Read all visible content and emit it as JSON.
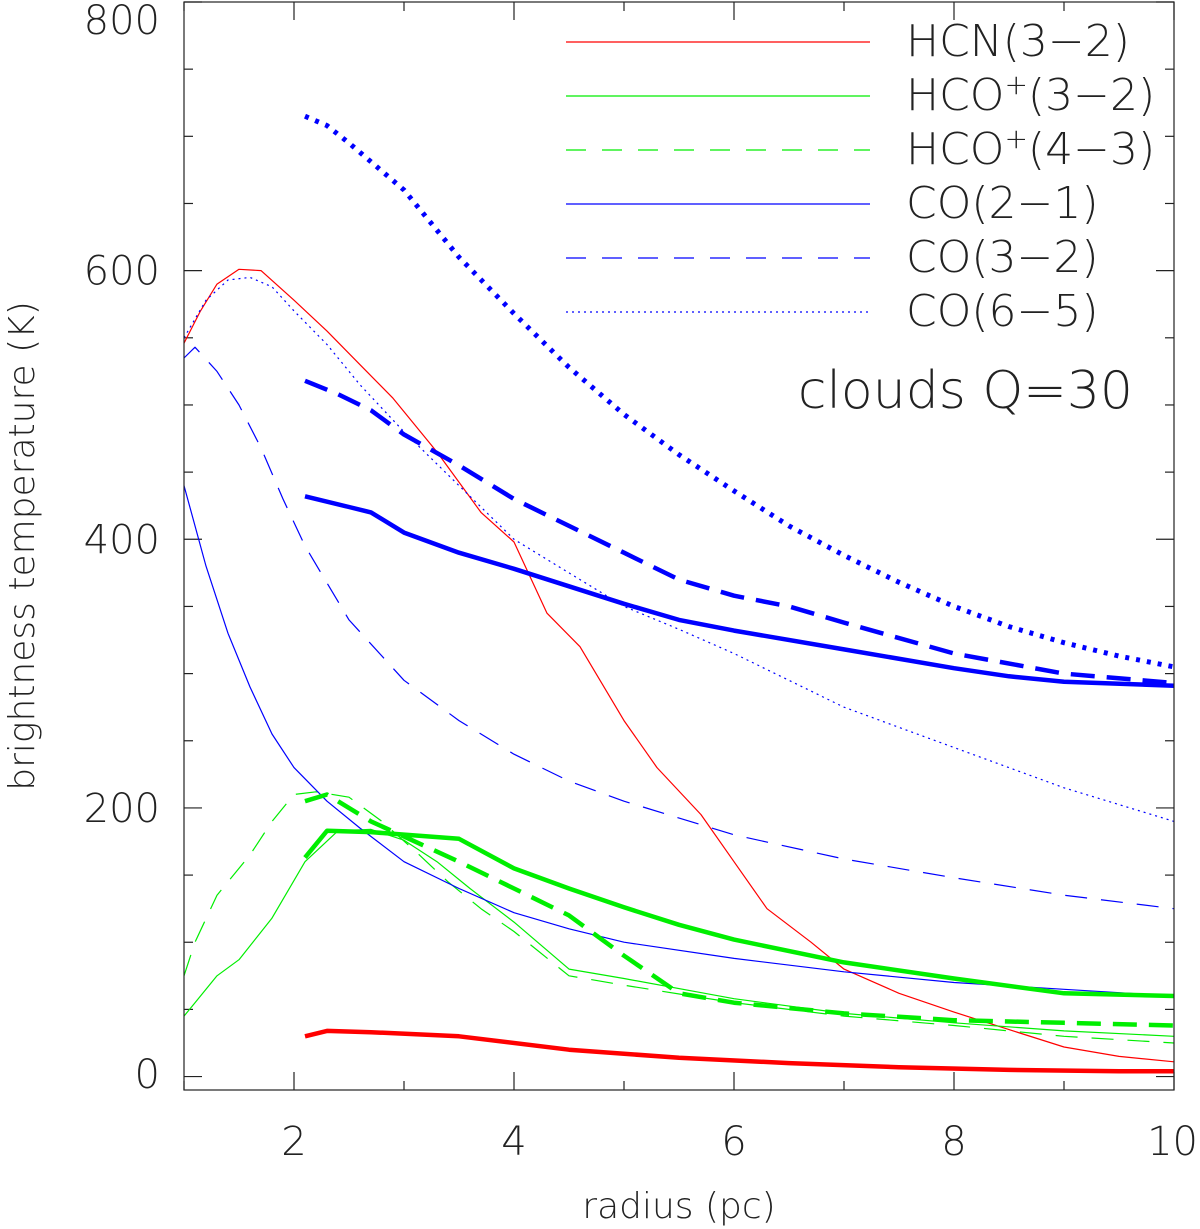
{
  "chart_data": {
    "type": "line",
    "title": "",
    "xlabel": "radius (pc)",
    "ylabel": "brightness temperature (K)",
    "xlim": [
      1,
      10
    ],
    "ylim": [
      -10,
      800
    ],
    "xticks": [
      2,
      4,
      6,
      8,
      10
    ],
    "yticks": [
      0,
      200,
      400,
      600,
      800
    ],
    "annotation": "clouds Q=30",
    "legend": {
      "placement": "top-right",
      "entries": [
        {
          "label": "HCN(3−2)",
          "base": "HCN(3−2)",
          "sup": "",
          "tail": "",
          "color": "#ff0000",
          "dash": "solid"
        },
        {
          "label": "HCO⁺(3−2)",
          "base": "HCO",
          "sup": "+",
          "tail": "(3−2)",
          "color": "#00ee00",
          "dash": "solid"
        },
        {
          "label": "HCO⁺(4−3)",
          "base": "HCO",
          "sup": "+",
          "tail": "(4−3)",
          "color": "#00ee00",
          "dash": "dashed"
        },
        {
          "label": "CO(2−1)",
          "base": "CO(2−1)",
          "sup": "",
          "tail": "",
          "color": "#0000ff",
          "dash": "solid"
        },
        {
          "label": "CO(3−2)",
          "base": "CO(3−2)",
          "sup": "",
          "tail": "",
          "color": "#0000ff",
          "dash": "dashed"
        },
        {
          "label": "CO(6−5)",
          "base": "CO(6−5)",
          "sup": "",
          "tail": "",
          "color": "#0000ff",
          "dash": "dotted"
        }
      ]
    },
    "series": [
      {
        "line": "HCN(3−2)",
        "color": "#ff0000",
        "dash": "solid",
        "weight": "thin",
        "x": [
          1.0,
          1.15,
          1.3,
          1.5,
          1.7,
          2.0,
          2.3,
          2.6,
          2.9,
          3.3,
          3.7,
          4.0,
          4.3,
          4.6,
          5.0,
          5.3,
          5.7,
          6.0,
          6.3,
          6.7,
          7.0,
          7.5,
          8.0,
          8.5,
          9.0,
          9.5,
          10.0
        ],
        "y": [
          546,
          570,
          590,
          601,
          600,
          578,
          555,
          530,
          505,
          465,
          420,
          398,
          345,
          320,
          265,
          230,
          195,
          160,
          125,
          100,
          80,
          62,
          48,
          35,
          22,
          15,
          11
        ]
      },
      {
        "line": "HCO⁺(3−2)",
        "color": "#00ee00",
        "dash": "solid",
        "weight": "thin",
        "x": [
          1.0,
          1.1,
          1.3,
          1.5,
          1.8,
          2.1,
          2.4,
          2.7,
          3.0,
          3.3,
          3.6,
          4.0,
          4.5,
          5.0,
          6.0,
          7.0,
          8.0,
          9.0,
          10.0
        ],
        "y": [
          45,
          55,
          75,
          87,
          118,
          160,
          183,
          184,
          176,
          160,
          140,
          115,
          80,
          73,
          58,
          47,
          40,
          34,
          30
        ]
      },
      {
        "line": "HCO⁺(4−3)",
        "color": "#00ee00",
        "dash": "dashed",
        "weight": "thin",
        "x": [
          1.0,
          1.1,
          1.3,
          1.6,
          1.8,
          2.0,
          2.2,
          2.5,
          2.8,
          3.1,
          3.4,
          3.7,
          4.0,
          4.5,
          5.0,
          6.0,
          7.0,
          8.0,
          9.0,
          10.0
        ],
        "y": [
          75,
          100,
          135,
          165,
          190,
          210,
          212,
          208,
          190,
          168,
          145,
          125,
          108,
          75,
          68,
          55,
          45,
          38,
          30,
          25
        ]
      },
      {
        "line": "CO(2−1)",
        "color": "#0000ff",
        "dash": "solid",
        "weight": "thin",
        "x": [
          1.0,
          1.2,
          1.4,
          1.6,
          1.8,
          2.0,
          2.3,
          2.6,
          3.0,
          3.5,
          4.0,
          4.5,
          5.0,
          6.0,
          7.0,
          8.0,
          9.0,
          10.0
        ],
        "y": [
          440,
          380,
          330,
          290,
          255,
          230,
          205,
          185,
          160,
          140,
          122,
          110,
          100,
          88,
          78,
          70,
          65,
          60
        ]
      },
      {
        "line": "CO(3−2)",
        "color": "#0000ff",
        "dash": "dashed",
        "weight": "thin",
        "x": [
          1.0,
          1.1,
          1.3,
          1.5,
          1.7,
          1.9,
          2.1,
          2.5,
          3.0,
          3.5,
          4.0,
          4.5,
          5.0,
          6.0,
          7.0,
          8.0,
          9.0,
          10.0
        ],
        "y": [
          535,
          543,
          525,
          500,
          468,
          430,
          395,
          340,
          295,
          265,
          240,
          220,
          205,
          180,
          162,
          148,
          135,
          125
        ]
      },
      {
        "line": "CO(6−5)",
        "color": "#0000ff",
        "dash": "dotted",
        "weight": "thin",
        "x": [
          1.0,
          1.2,
          1.4,
          1.6,
          1.8,
          2.0,
          2.3,
          2.6,
          3.0,
          3.5,
          4.0,
          4.5,
          5.0,
          5.5,
          6.0,
          7.0,
          8.0,
          9.0,
          10.0
        ],
        "y": [
          550,
          578,
          593,
          595,
          588,
          570,
          545,
          515,
          480,
          440,
          400,
          375,
          350,
          333,
          315,
          275,
          245,
          215,
          190
        ]
      },
      {
        "line": "HCN(3−2)",
        "color": "#ff0000",
        "dash": "solid",
        "weight": "thick",
        "x": [
          2.1,
          2.3,
          2.7,
          3.5,
          4.5,
          5.5,
          6.5,
          7.5,
          8.5,
          9.5,
          10.0
        ],
        "y": [
          30,
          34,
          33,
          30,
          20,
          14,
          10,
          7,
          5,
          4,
          4
        ]
      },
      {
        "line": "HCO⁺(3−2)",
        "color": "#00ee00",
        "dash": "solid",
        "weight": "thick",
        "x": [
          2.1,
          2.3,
          2.7,
          3.5,
          4.0,
          4.5,
          5.0,
          5.5,
          6.0,
          7.0,
          8.0,
          9.0,
          10.0
        ],
        "y": [
          163,
          183,
          182,
          177,
          155,
          140,
          126,
          113,
          102,
          85,
          73,
          62,
          60
        ]
      },
      {
        "line": "HCO⁺(4−3)",
        "color": "#00ee00",
        "dash": "dashed",
        "weight": "thick",
        "x": [
          2.1,
          2.3,
          2.7,
          3.5,
          4.0,
          4.5,
          5.0,
          5.5,
          6.0,
          7.0,
          8.0,
          9.0,
          10.0
        ],
        "y": [
          205,
          210,
          190,
          160,
          140,
          120,
          90,
          62,
          55,
          47,
          42,
          40,
          38
        ]
      },
      {
        "line": "CO(2−1)",
        "color": "#0000ff",
        "dash": "solid",
        "weight": "thick",
        "x": [
          2.1,
          2.5,
          2.7,
          3.0,
          3.5,
          4.0,
          4.5,
          5.0,
          5.5,
          6.0,
          7.0,
          8.0,
          8.5,
          9.0,
          10.0
        ],
        "y": [
          432,
          424,
          420,
          405,
          390,
          378,
          365,
          352,
          340,
          332,
          318,
          304,
          298,
          294,
          291
        ]
      },
      {
        "line": "CO(3−2)",
        "color": "#0000ff",
        "dash": "dashed",
        "weight": "thick",
        "x": [
          2.1,
          2.4,
          2.7,
          3.0,
          3.5,
          4.0,
          4.5,
          5.0,
          5.5,
          6.0,
          6.5,
          7.0,
          8.0,
          9.0,
          10.0
        ],
        "y": [
          518,
          508,
          496,
          478,
          455,
          430,
          410,
          390,
          370,
          358,
          350,
          338,
          315,
          300,
          293
        ]
      },
      {
        "line": "CO(6−5)",
        "color": "#0000ff",
        "dash": "dotted",
        "weight": "thick",
        "x": [
          2.1,
          2.3,
          2.5,
          3.0,
          3.5,
          4.0,
          4.5,
          5.0,
          5.5,
          6.0,
          6.5,
          7.0,
          7.5,
          8.0,
          8.5,
          9.0,
          9.5,
          10.0
        ],
        "y": [
          715,
          708,
          695,
          660,
          610,
          568,
          528,
          493,
          463,
          436,
          410,
          388,
          368,
          350,
          335,
          323,
          313,
          305
        ]
      }
    ]
  }
}
